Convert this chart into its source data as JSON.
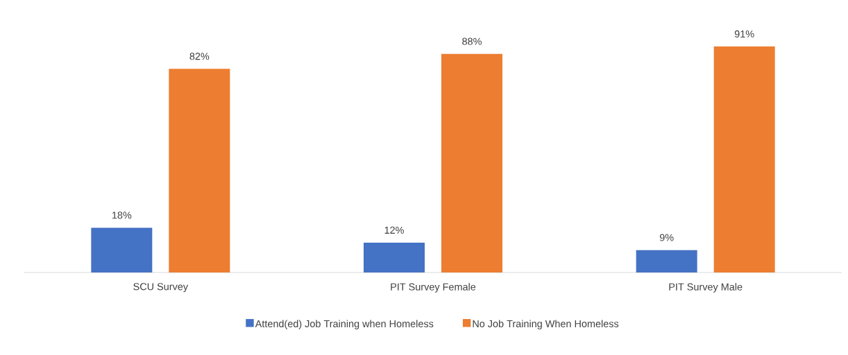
{
  "chart_data": {
    "type": "bar",
    "categories": [
      "SCU Survey",
      "PIT Survey Female",
      "PIT Survey Male"
    ],
    "series": [
      {
        "name": "Attend(ed) Job Training when Homeless",
        "color": "#4472c4",
        "values": [
          18,
          12,
          9
        ],
        "value_labels": [
          "18%",
          "12%",
          "9%"
        ]
      },
      {
        "name": "No Job Training When Homeless",
        "color": "#ed7d31",
        "values": [
          82,
          88,
          91
        ],
        "value_labels": [
          "82%",
          "88%",
          "91%"
        ]
      }
    ],
    "legend": "bottom"
  }
}
